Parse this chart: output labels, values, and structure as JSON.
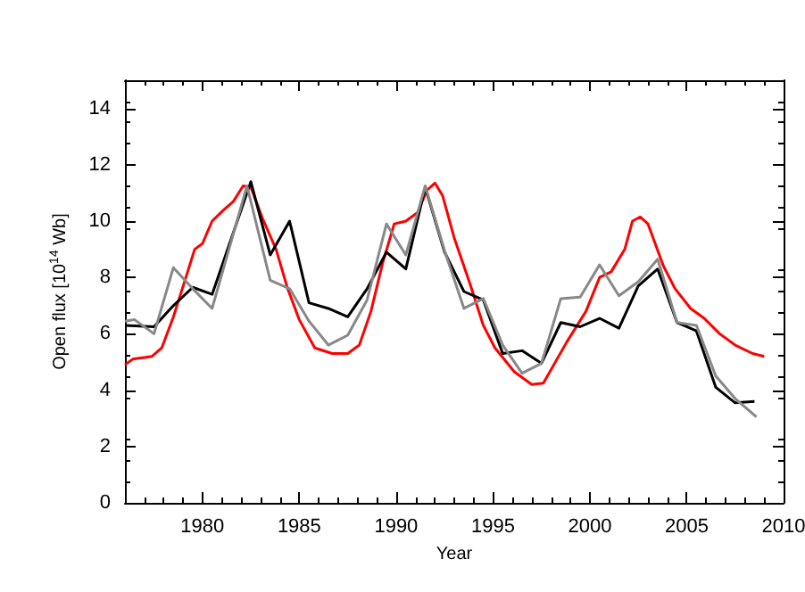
{
  "chart_data": {
    "type": "line",
    "xlabel": "Year",
    "ylabel": "Open flux [10$^{14}$ Wb]",
    "xlim": [
      1976,
      2010
    ],
    "xticks": [
      1980,
      1985,
      1990,
      1995,
      2000,
      2005,
      2010
    ],
    "ylim": [
      0,
      15
    ],
    "yticks": [
      0,
      2,
      4,
      6,
      8,
      10,
      12,
      14
    ],
    "grid": false,
    "marker": "none",
    "line_style": "solid",
    "series": [
      {
        "color": "#ff0000",
        "x": [
          1976,
          1976.4,
          1977.4,
          1977.9,
          1978.5,
          1979.1,
          1979.6,
          1980,
          1980.5,
          1981.1,
          1981.6,
          1982.1,
          1982.5,
          1983.1,
          1983.8,
          1984.4,
          1985,
          1985.8,
          1986.7,
          1987.5,
          1988.1,
          1988.7,
          1989.3,
          1989.9,
          1990.5,
          1991.1,
          1991.6,
          1992,
          1992.4,
          1993,
          1993.8,
          1994.5,
          1995.1,
          1996.1,
          1997,
          1997.6,
          1998.8,
          1999.8,
          2000.5,
          2001.1,
          2001.8,
          2002.2,
          2002.6,
          2003,
          2003.8,
          2004.4,
          2005.2,
          2005.9,
          2006.7,
          2007.5,
          2008.4,
          2009
        ],
        "values": [
          4.9,
          5.1,
          5.2,
          5.5,
          6.6,
          7.9,
          9.0,
          9.2,
          10.0,
          10.4,
          10.7,
          11.25,
          11.2,
          10.1,
          9.0,
          7.6,
          6.5,
          5.5,
          5.3,
          5.3,
          5.6,
          6.8,
          8.5,
          9.9,
          10.0,
          10.3,
          11.1,
          11.35,
          10.9,
          9.4,
          7.8,
          6.3,
          5.5,
          4.65,
          4.2,
          4.25,
          5.7,
          6.8,
          8.0,
          8.2,
          9.0,
          10.0,
          10.15,
          9.9,
          8.4,
          7.6,
          6.9,
          6.55,
          6.0,
          5.6,
          5.3,
          5.2
        ]
      },
      {
        "color": "#000000",
        "x": [
          1976,
          1977.5,
          1978.5,
          1979.5,
          1980.5,
          1981.5,
          1982.5,
          1983.5,
          1984.5,
          1985.5,
          1986.5,
          1987.5,
          1988.5,
          1989.5,
          1990.5,
          1991.5,
          1992.5,
          1993.5,
          1994.5,
          1995.5,
          1996.5,
          1997.5,
          1998.5,
          1999.5,
          2000.5,
          2001.5,
          2002.5,
          2003.5,
          2004.5,
          2005.5,
          2006.5,
          2007.5,
          2008.5
        ],
        "values": [
          6.3,
          6.25,
          7.0,
          7.65,
          7.4,
          9.4,
          11.4,
          8.8,
          10.0,
          7.1,
          6.9,
          6.6,
          7.6,
          8.9,
          8.3,
          11.2,
          8.9,
          7.5,
          7.2,
          5.3,
          5.4,
          4.95,
          6.4,
          6.25,
          6.55,
          6.2,
          7.7,
          8.3,
          6.4,
          6.1,
          4.1,
          3.55,
          3.6
        ]
      },
      {
        "color": "#888888",
        "x": [
          1976,
          1976.5,
          1977.5,
          1978.5,
          1979.5,
          1980.5,
          1982.3,
          1983.5,
          1984.5,
          1985.5,
          1986.5,
          1987.5,
          1988.5,
          1989.5,
          1990.5,
          1991.5,
          1992.5,
          1993.5,
          1994.5,
          1995.5,
          1996.5,
          1997.5,
          1998.5,
          1999.5,
          2000.5,
          2001.5,
          2002.5,
          2003.5,
          2004.5,
          2005.5,
          2006.5,
          2007.5,
          2008.6
        ],
        "values": [
          6.45,
          6.5,
          6.0,
          8.35,
          7.6,
          6.9,
          11.25,
          7.9,
          7.6,
          6.45,
          5.6,
          5.95,
          7.2,
          9.9,
          8.8,
          11.25,
          8.95,
          6.9,
          7.25,
          5.6,
          4.6,
          4.95,
          7.25,
          7.3,
          8.45,
          7.35,
          7.85,
          8.65,
          6.4,
          6.3,
          4.5,
          3.7,
          3.05
        ]
      }
    ]
  }
}
